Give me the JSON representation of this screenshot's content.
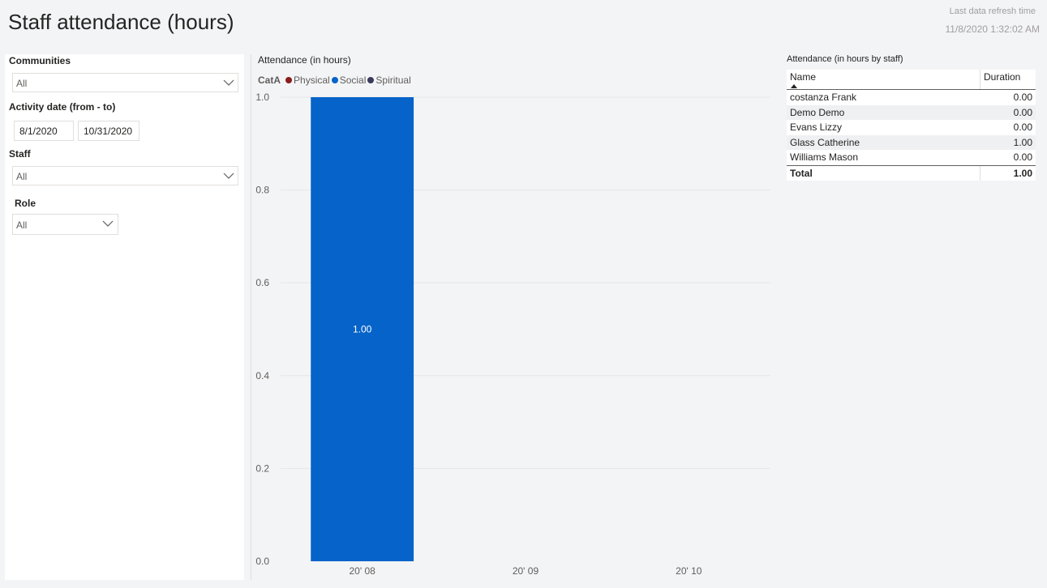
{
  "header": {
    "title": "Staff attendance (hours)",
    "refresh_label": "Last data refresh time",
    "refresh_time": "11/8/2020 1:32:02 AM"
  },
  "filters": {
    "communities": {
      "label": "Communities",
      "value": "All"
    },
    "activity_date": {
      "label": "Activity date (from - to)",
      "from": "8/1/2020",
      "to": "10/31/2020"
    },
    "staff": {
      "label": "Staff",
      "value": "All"
    },
    "role": {
      "label": "Role",
      "value": "All"
    }
  },
  "chart_data": {
    "type": "bar",
    "title": "Attendance (in hours)",
    "legend_title": "CatA",
    "legend_position": "top-left",
    "categories": [
      "20' 08",
      "20' 09",
      "20' 10"
    ],
    "series": [
      {
        "name": "Physical",
        "color": "#8a1d1d",
        "values": [
          0,
          0,
          0
        ]
      },
      {
        "name": "Social",
        "color": "#0563c9",
        "values": [
          1.0,
          0,
          0
        ]
      },
      {
        "name": "Spiritual",
        "color": "#3b3a5c",
        "values": [
          0,
          0,
          0
        ]
      }
    ],
    "data_labels": [
      "1.00",
      "",
      ""
    ],
    "yticks": [
      "0.0",
      "0.2",
      "0.4",
      "0.6",
      "0.8",
      "1.0"
    ],
    "ylim": [
      0,
      1
    ],
    "grid": true,
    "stacked": true
  },
  "table": {
    "title": "Attendance (in hours by staff)",
    "columns": [
      "Name",
      "Duration"
    ],
    "rows": [
      {
        "name": "costanza Frank",
        "duration": "0.00"
      },
      {
        "name": "Demo Demo",
        "duration": "0.00"
      },
      {
        "name": "Evans Lizzy",
        "duration": "0.00"
      },
      {
        "name": "Glass Catherine",
        "duration": "1.00"
      },
      {
        "name": "Williams Mason",
        "duration": "0.00"
      }
    ],
    "total_label": "Total",
    "total_value": "1.00"
  },
  "icons": {
    "dropdown": "chevron-down-icon",
    "sort": "sort-ascending-icon"
  }
}
